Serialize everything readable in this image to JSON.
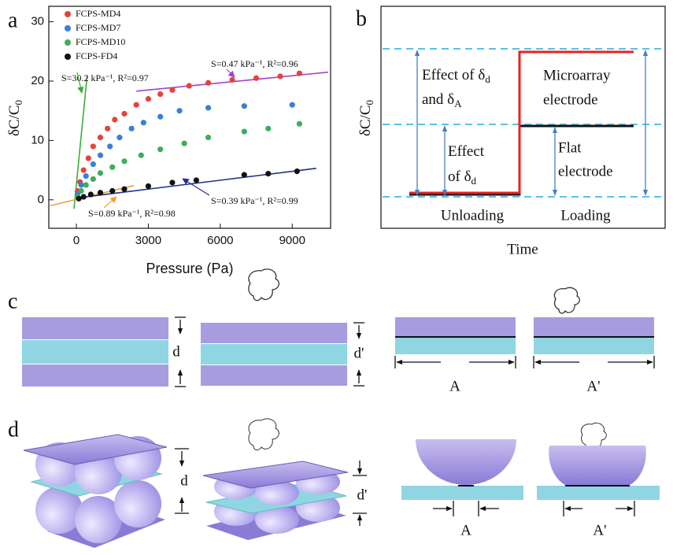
{
  "panel_labels": [
    "a",
    "b",
    "c",
    "d"
  ],
  "chart_data": {
    "type": "scatter",
    "xlabel": "Pressure (Pa)",
    "ylabel": {
      "text": "δC/C",
      "sub": "0"
    },
    "xlim": [
      -1150,
      10600
    ],
    "ylim": [
      -4.8,
      32.6
    ],
    "xticks": [
      0,
      3000,
      6000,
      9000
    ],
    "yticks": [
      0,
      10,
      20,
      30
    ],
    "legend": "upper left",
    "series": [
      {
        "name": "FCPS-MD4",
        "color": "#e8413a",
        "x": [
          50,
          150,
          300,
          500,
          700,
          1000,
          1300,
          1600,
          2000,
          2500,
          3000,
          3500,
          4000,
          4700,
          5500,
          6500,
          7500,
          8500,
          9300
        ],
        "values": [
          1.5,
          3,
          5,
          7,
          9,
          10.5,
          12,
          13.5,
          14.5,
          16,
          17,
          17.8,
          18.5,
          19.2,
          19.7,
          20.2,
          20.5,
          20.8,
          21.3
        ]
      },
      {
        "name": "FCPS-MD7",
        "color": "#3a7fd8",
        "x": [
          50,
          200,
          400,
          700,
          1000,
          1400,
          1800,
          2300,
          2800,
          3500,
          4300,
          5500,
          7000,
          9000
        ],
        "values": [
          1,
          2.5,
          4,
          6,
          7.5,
          9,
          10.5,
          12,
          13,
          14,
          15,
          15.5,
          15.8,
          16
        ]
      },
      {
        "name": "FCPS-MD10",
        "color": "#3dae5a",
        "x": [
          50,
          200,
          400,
          700,
          1000,
          1500,
          2000,
          2700,
          3500,
          4500,
          5500,
          7000,
          8000,
          9300
        ],
        "values": [
          0.5,
          1.5,
          2.5,
          3.5,
          4.5,
          5.5,
          6.5,
          7.5,
          8.5,
          9.5,
          10.5,
          11.5,
          12,
          12.8
        ]
      },
      {
        "name": "FCPS-FD4",
        "color": "#111111",
        "x": [
          100,
          300,
          600,
          1000,
          1500,
          2000,
          3000,
          4000,
          5000,
          7000,
          8000,
          9200
        ],
        "values": [
          0.2,
          0.5,
          0.9,
          1.2,
          1.5,
          1.8,
          2.3,
          2.9,
          3.3,
          4.2,
          4.4,
          4.8
        ]
      }
    ],
    "fits": [
      {
        "label": "S=30.2 kPa⁻¹, R²=0.97",
        "color": "#3dae3a",
        "x": [
          -100,
          450
        ],
        "values": [
          -1.5,
          21
        ]
      },
      {
        "label": "S=0.89 kPa⁻¹, R²=0.98",
        "color": "#f39c3a",
        "x": [
          -1100,
          2400
        ],
        "values": [
          -1,
          2.4
        ]
      },
      {
        "label": "S=0.39 kPa⁻¹, R²=0.99",
        "color": "#1f2f8a",
        "x": [
          0,
          10000
        ],
        "values": [
          0.3,
          5.3
        ]
      },
      {
        "label": "S=0.47 kPa⁻¹, R²=0.96",
        "color": "#a23fd0",
        "x": [
          2500,
          10500
        ],
        "values": [
          18.3,
          21.5
        ]
      }
    ]
  },
  "schematic_b": {
    "ylabel": {
      "text": "δC/C",
      "sub": "0"
    },
    "xlabel": "Time",
    "effect_both": [
      {
        "text": "Effect of δ",
        "sub": "d"
      },
      {
        "text": "and δ",
        "sub": "A"
      }
    ],
    "microarray": [
      "Microarray",
      "electrode"
    ],
    "effect_d": [
      {
        "text": "Effect",
        "sub": ""
      },
      {
        "text": "of δ",
        "sub": "d"
      }
    ],
    "flat": [
      "Flat",
      "electrode"
    ],
    "phases": [
      "Unloading",
      "Loading"
    ]
  },
  "diagram_c": {
    "gap_labels": [
      "d",
      "d'"
    ],
    "area_labels": [
      "A",
      "A'"
    ]
  },
  "diagram_d": {
    "gap_labels": [
      "d",
      "d'"
    ],
    "area_labels": [
      "A",
      "A'"
    ]
  }
}
